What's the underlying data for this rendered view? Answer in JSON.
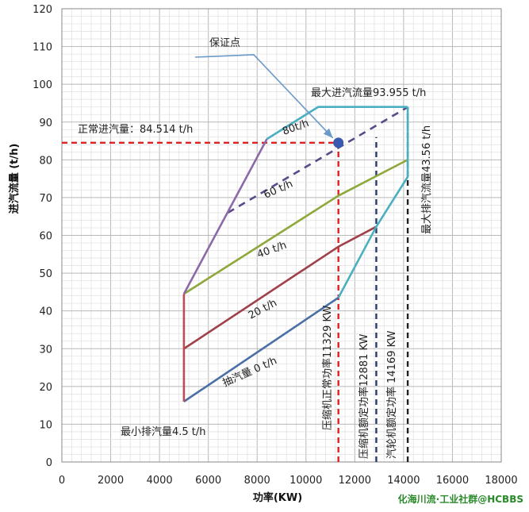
{
  "chart_data": {
    "type": "line",
    "xlabel": "功率(KW)",
    "ylabel": "进汽流量 (t/h)",
    "xlim": [
      0,
      18000
    ],
    "ylim": [
      0,
      120
    ],
    "x_ticks": [
      0,
      2000,
      4000,
      6000,
      8000,
      10000,
      12000,
      14000,
      16000,
      18000
    ],
    "y_ticks": [
      0,
      10,
      20,
      30,
      40,
      50,
      60,
      70,
      80,
      90,
      100,
      110,
      120
    ],
    "grid": true,
    "series": [
      {
        "name": "抽汽量 0 t/h",
        "color": "#4a6fa5",
        "style": "solid",
        "points": [
          [
            5000,
            16
          ],
          [
            11329,
            43.5
          ]
        ]
      },
      {
        "name": "20 t/h",
        "color": "#a0404a",
        "style": "solid",
        "points": [
          [
            5000,
            30
          ],
          [
            11329,
            57
          ],
          [
            12881,
            62.3
          ]
        ]
      },
      {
        "name": "40 t/h",
        "color": "#8fa83c",
        "style": "solid",
        "points": [
          [
            5000,
            44.5
          ],
          [
            11329,
            70.5
          ],
          [
            14169,
            80
          ]
        ]
      },
      {
        "name": "60 t/h",
        "color": "#5a4a8a",
        "style": "dashed",
        "points": [
          [
            6800,
            66
          ],
          [
            14169,
            93.955
          ]
        ]
      },
      {
        "name": "80t/h",
        "color": "#8a6aa8",
        "style": "solid",
        "points": [
          [
            5000,
            44.5
          ],
          [
            8400,
            85.5
          ]
        ]
      },
      {
        "name": "最大进汽流量93.955 t/h",
        "color": "#4aafc0",
        "style": "solid",
        "points": [
          [
            8400,
            85.5
          ],
          [
            10500,
            94
          ],
          [
            14169,
            94
          ]
        ]
      },
      {
        "name": "最大排汽流量43.56 t/h",
        "color": "#4aafc0",
        "style": "solid",
        "points": [
          [
            11329,
            43.5
          ],
          [
            12881,
            62.3
          ],
          [
            14169,
            75.5
          ],
          [
            14169,
            94
          ]
        ]
      },
      {
        "name": "最小排汽量4.5 t/h",
        "color": "#c04a55",
        "style": "solid",
        "points": [
          [
            5000,
            16
          ],
          [
            5000,
            44.5
          ]
        ]
      }
    ],
    "reference_lines": [
      {
        "orientation": "horizontal",
        "value": 84.514,
        "from_x": 0,
        "to_x": 11329,
        "color": "#e02020",
        "label": "正常进汽量：84.514 t/h"
      },
      {
        "orientation": "vertical",
        "value": 11329,
        "from_y": 0,
        "to_y": 84.514,
        "color": "#e02020",
        "label": "压缩机正常功率11329 KW"
      },
      {
        "orientation": "vertical",
        "value": 12881,
        "from_y": 0,
        "to_y": 86,
        "color": "#2a3a6a",
        "label": "压缩机额定功率12881 KW"
      },
      {
        "orientation": "vertical",
        "value": 14169,
        "from_y": 0,
        "to_y": 93.955,
        "color": "#222222",
        "label": "汽轮机额定功率 14169 KW"
      }
    ],
    "guarantee_point": {
      "label": "保证点",
      "x": 11329,
      "y": 84.514,
      "color": "#3a5ab0"
    },
    "annotations": [
      {
        "text": "保证点"
      },
      {
        "text": "最大进汽流量93.955 t/h"
      },
      {
        "text": "正常进汽量：84.514 t/h"
      },
      {
        "text": "80t/h"
      },
      {
        "text": "60 t/h"
      },
      {
        "text": "40 t/h"
      },
      {
        "text": "20 t/h"
      },
      {
        "text": "抽汽量  0 t/h"
      },
      {
        "text": "最小排汽量4.5 t/h"
      },
      {
        "text": "最大排汽流量43.56 t/h"
      },
      {
        "text": "压缩机正常功率11329 KW"
      },
      {
        "text": "压缩机额定功率12881 KW"
      },
      {
        "text": "汽轮机额定功率 14169 KW"
      }
    ]
  },
  "watermark": "化海川流·工业社群@HCBBS"
}
